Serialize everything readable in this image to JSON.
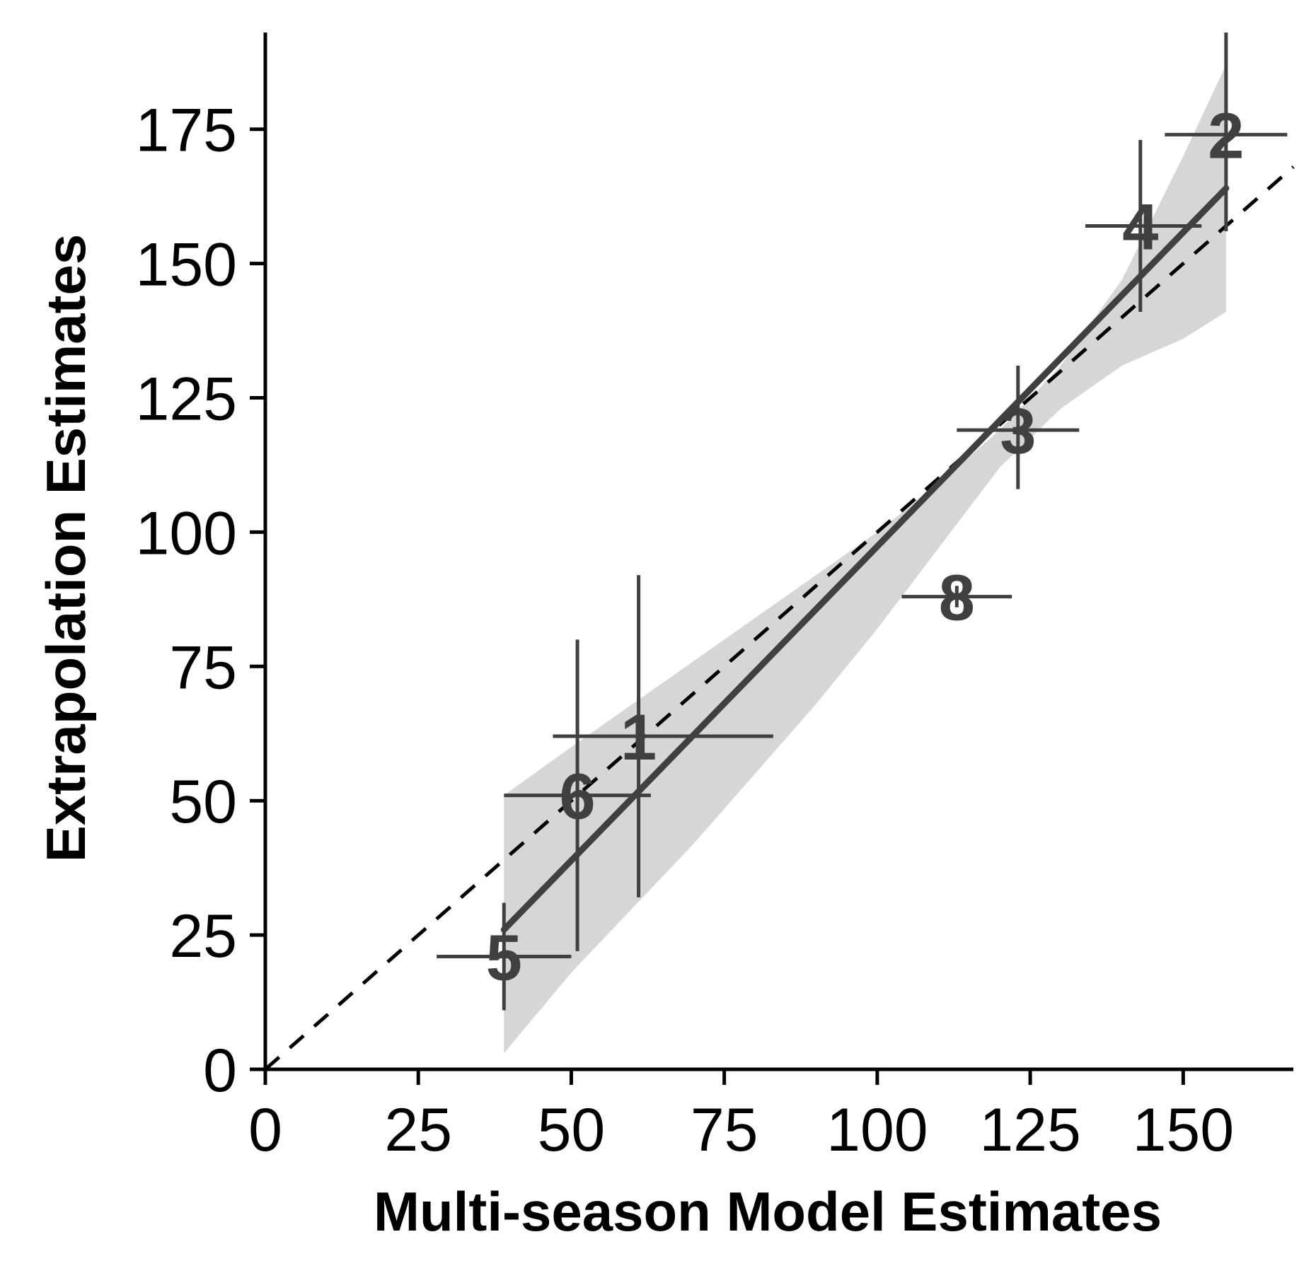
{
  "chart_data": {
    "type": "scatter",
    "xlabel": "Multi-season Model Estimates",
    "ylabel": "Extrapolation Estimates",
    "xlim": [
      0,
      168
    ],
    "ylim": [
      0,
      193
    ],
    "xticks": [
      0,
      25,
      50,
      75,
      100,
      125,
      150
    ],
    "yticks": [
      0,
      25,
      50,
      75,
      100,
      125,
      150,
      175
    ],
    "grid": false,
    "points": [
      {
        "label": "1",
        "x": 61,
        "y": 62,
        "xerr": [
          47,
          83
        ],
        "yerr": [
          32,
          92
        ]
      },
      {
        "label": "2",
        "x": 157,
        "y": 174,
        "xerr": [
          147,
          167
        ],
        "yerr": [
          156,
          193
        ]
      },
      {
        "label": "3",
        "x": 123,
        "y": 119,
        "xerr": [
          113,
          133
        ],
        "yerr": [
          108,
          131
        ]
      },
      {
        "label": "4",
        "x": 143,
        "y": 157,
        "xerr": [
          134,
          153
        ],
        "yerr": [
          141,
          173
        ]
      },
      {
        "label": "5",
        "x": 39,
        "y": 21,
        "xerr": [
          28,
          50
        ],
        "yerr": [
          11,
          31
        ]
      },
      {
        "label": "6",
        "x": 51,
        "y": 51,
        "xerr": [
          39,
          63
        ],
        "yerr": [
          22,
          80
        ]
      },
      {
        "label": "8",
        "x": 113,
        "y": 88,
        "xerr": [
          104,
          122
        ],
        "yerr": [
          86,
          90
        ]
      }
    ],
    "fit_line": {
      "x": [
        39,
        157
      ],
      "y": [
        26,
        164
      ],
      "style": "solid"
    },
    "fit_band": {
      "x": [
        39,
        50,
        70,
        90,
        100,
        110,
        120,
        130,
        140,
        150,
        157
      ],
      "lower": [
        3,
        18,
        42,
        68,
        82,
        97,
        112,
        123,
        131,
        136,
        141
      ],
      "upper": [
        51,
        60,
        76,
        92,
        100,
        109,
        119,
        131,
        147,
        170,
        187
      ]
    },
    "reference_line": {
      "x": [
        0,
        168
      ],
      "y": [
        0,
        168
      ],
      "style": "dashed"
    },
    "colors": {
      "points": "#404040",
      "fit": "#404040",
      "band": "#d6d6d6",
      "reference": "#000000"
    }
  }
}
